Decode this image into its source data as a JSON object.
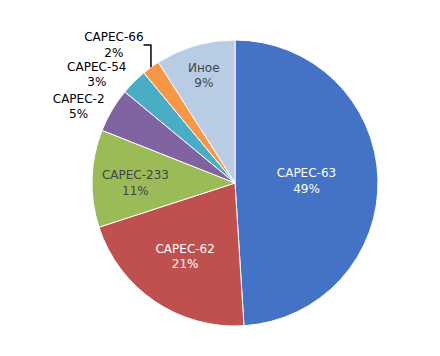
{
  "chart_data": {
    "type": "pie",
    "categories": [
      "CAPEC-63",
      "CAPEC-62",
      "CAPEC-233",
      "CAPEC-2",
      "CAPEC-54",
      "CAPEC-66",
      "Иное"
    ],
    "values": [
      49,
      21,
      11,
      5,
      3,
      2,
      9
    ],
    "value_labels": [
      "49%",
      "21%",
      "11%",
      "5%",
      "3%",
      "2%",
      "9%"
    ],
    "colors": [
      "#4472C4",
      "#C0504D",
      "#9BBB59",
      "#8064A2",
      "#4BACC6",
      "#F79646",
      "#B8CCE4"
    ],
    "data_labels": true
  }
}
